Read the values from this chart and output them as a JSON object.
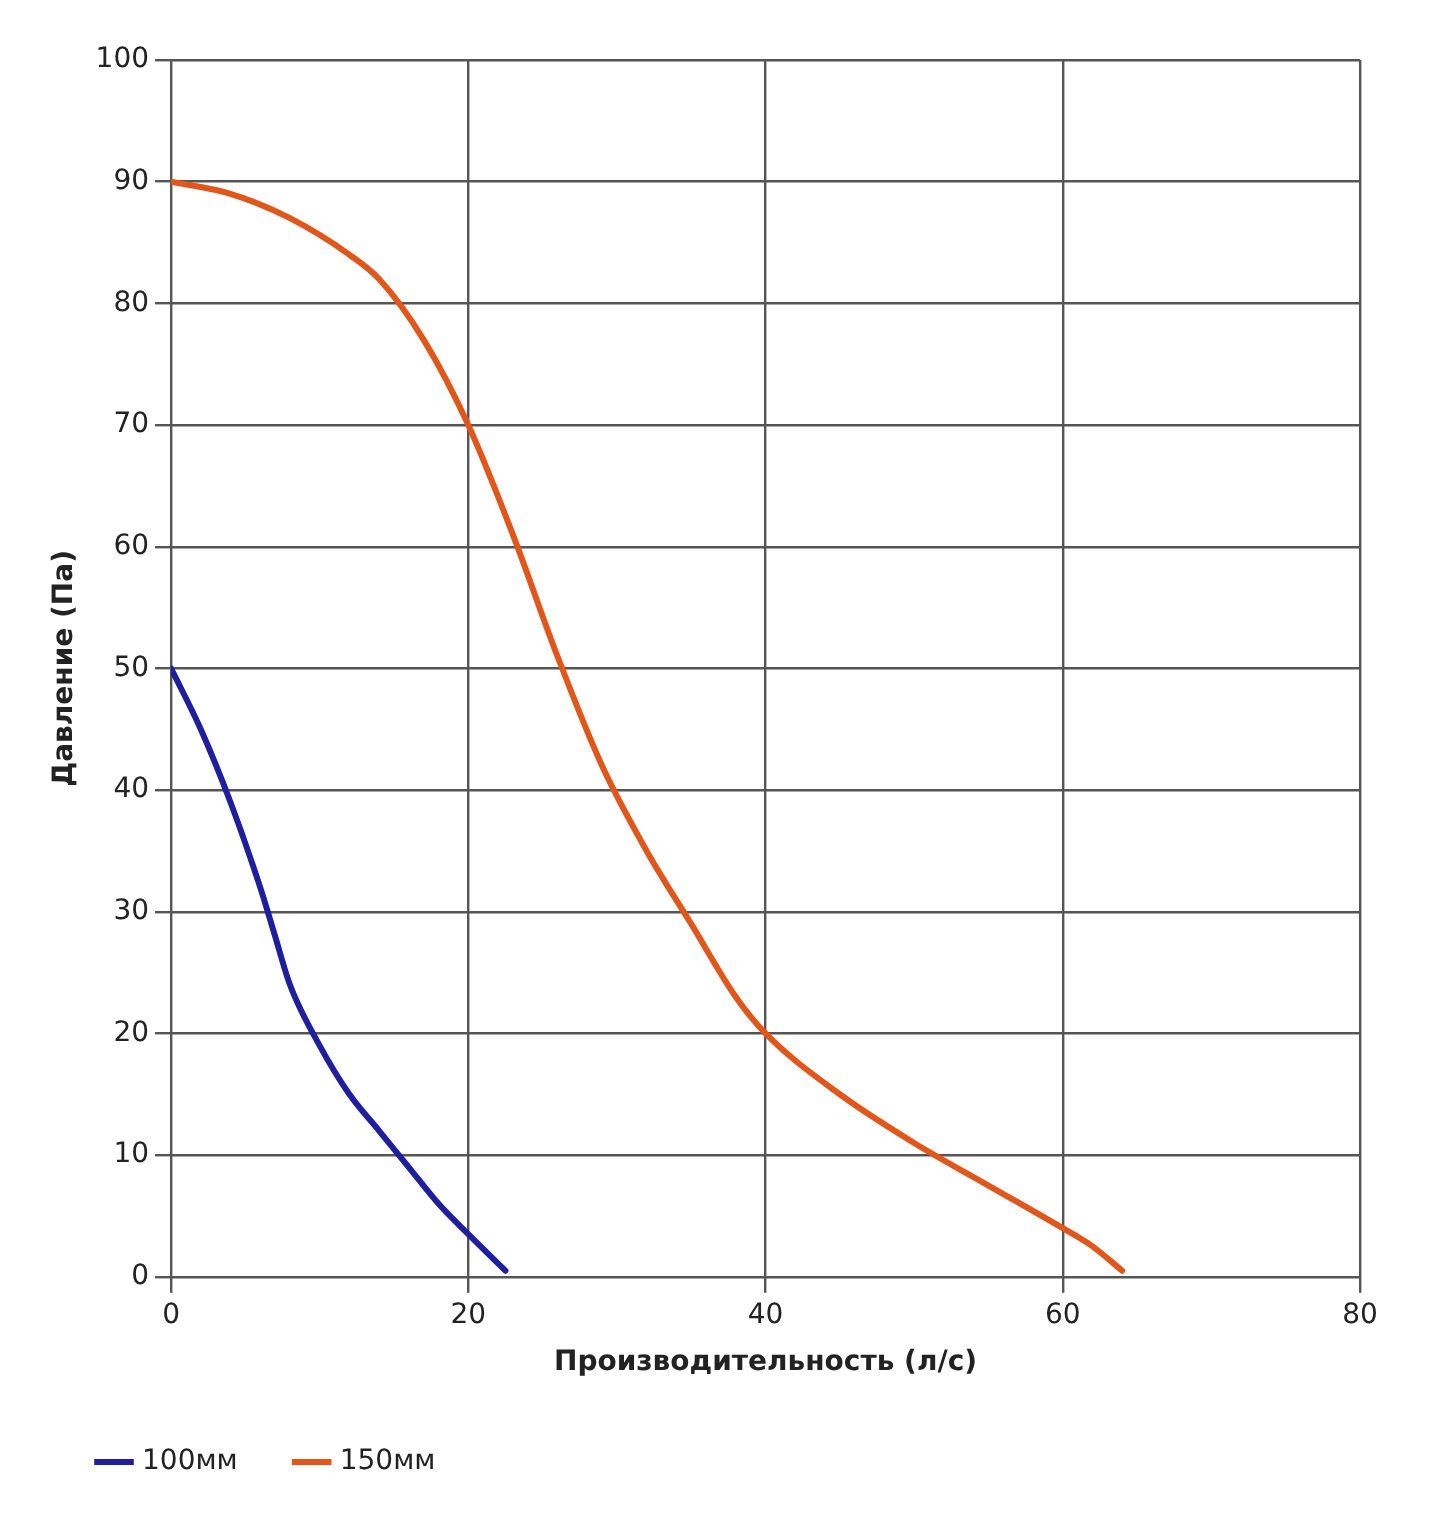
{
  "chart_data": {
    "type": "line",
    "xlabel": "Производительность (л/с)",
    "ylabel": "Давление (Па)",
    "xlim": [
      0,
      80
    ],
    "xticks": [
      0,
      20,
      40,
      60,
      80
    ],
    "ylim": [
      0,
      100
    ],
    "yticks": [
      0,
      10,
      20,
      30,
      40,
      50,
      60,
      70,
      80,
      90,
      100
    ],
    "grid": true,
    "legend": "bottom",
    "marker": "none",
    "line_style": "solid",
    "series": [
      {
        "name": "100мм",
        "color": "#1f1f9e",
        "x": [
          0,
          2,
          4,
          6,
          7,
          8,
          10,
          12,
          14,
          16,
          18,
          20,
          22.5
        ],
        "values": [
          50,
          45,
          39,
          32,
          28,
          24,
          19,
          15,
          12,
          9,
          6,
          3.5,
          0.5
        ]
      },
      {
        "name": "150мм",
        "color": "#e0561b",
        "x": [
          0,
          4,
          8,
          12,
          14,
          17,
          20,
          23,
          26,
          29,
          32,
          35,
          38,
          40,
          45,
          50,
          55,
          60,
          62,
          64
        ],
        "values": [
          90,
          89,
          87,
          84,
          82,
          77,
          70,
          61,
          51,
          42,
          35,
          29,
          23,
          20,
          15,
          11,
          7.5,
          4,
          2.5,
          0.5
        ]
      }
    ]
  }
}
